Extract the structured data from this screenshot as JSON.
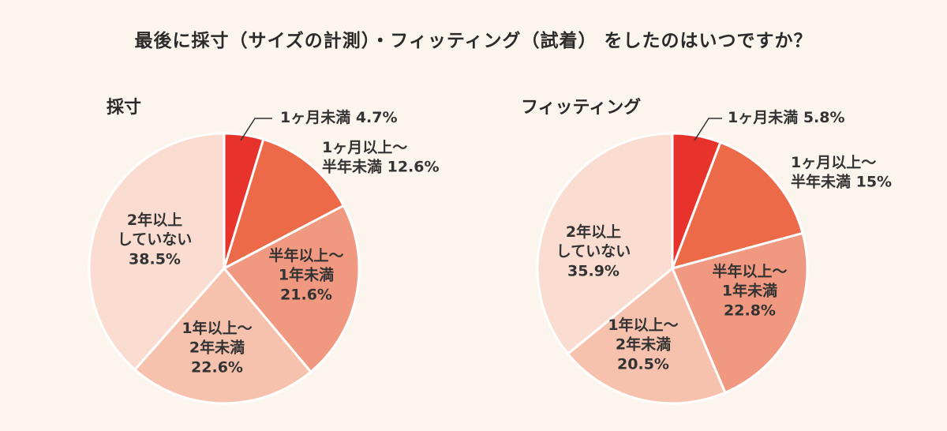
{
  "title": "最後に採寸（サイズの計測）・フィッティング（試着） をしたのはいつですか？",
  "colors": {
    "slice": [
      "#e8322c",
      "#ec6a48",
      "#f09880",
      "#f6c2ae",
      "#fadcd0"
    ],
    "border": "#ffffff",
    "leader": "#333333"
  },
  "chart_data": [
    {
      "type": "pie",
      "title": "採寸",
      "start_angle_deg": 0,
      "direction": "clockwise",
      "slices": [
        {
          "label_lines": [
            "1ヶ月未満 4.7%"
          ],
          "value": 4.7
        },
        {
          "label_lines": [
            "1ヶ月以上～",
            "半年未満 12.6%"
          ],
          "value": 12.6
        },
        {
          "label_lines": [
            "半年以上～",
            "1年未満",
            "21.6%"
          ],
          "value": 21.6
        },
        {
          "label_lines": [
            "1年以上～",
            "2年未満",
            "22.6%"
          ],
          "value": 22.6
        },
        {
          "label_lines": [
            "2年以上",
            "していない",
            "38.5%"
          ],
          "value": 38.5
        }
      ]
    },
    {
      "type": "pie",
      "title": "フィッティング",
      "start_angle_deg": 0,
      "direction": "clockwise",
      "slices": [
        {
          "label_lines": [
            "1ヶ月未満 5.8%"
          ],
          "value": 5.8
        },
        {
          "label_lines": [
            "1ヶ月以上～",
            "半年未満 15%"
          ],
          "value": 15
        },
        {
          "label_lines": [
            "半年以上～",
            "1年未満",
            "22.8%"
          ],
          "value": 22.8
        },
        {
          "label_lines": [
            "1年以上～",
            "2年未満",
            "20.5%"
          ],
          "value": 20.5
        },
        {
          "label_lines": [
            "2年以上",
            "していない",
            "35.9%"
          ],
          "value": 35.9
        }
      ]
    }
  ]
}
